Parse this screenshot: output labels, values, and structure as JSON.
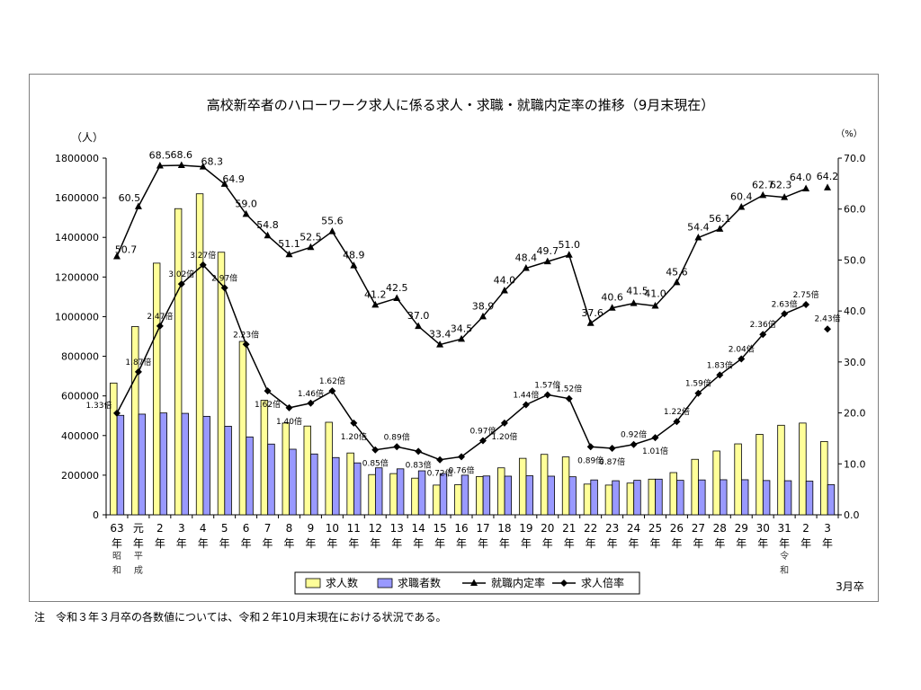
{
  "note": "注　令和３年３月卒の各数値については、令和２年10月末現在における状況である。",
  "colors": {
    "offers_fill": "#ffff99",
    "seekers_fill": "#9999ff",
    "bar_stroke": "#000000",
    "line": "#000000",
    "frame": "#7f7f7f"
  },
  "chart_data": {
    "type": "bar",
    "title": "高校新卒者のハローワーク求人に係る求人・求職・就職内定率の推移（9月末現在）",
    "y_left_unit": "（人）",
    "y_right_unit": "（%）",
    "ylim_left": [
      0,
      1800000
    ],
    "ylim_right": [
      0.0,
      70.0
    ],
    "y_left_ticks": [
      "0",
      "200000",
      "400000",
      "600000",
      "800000",
      "1000000",
      "1200000",
      "1400000",
      "1600000",
      "1800000"
    ],
    "y_right_ticks": [
      "0.0",
      "10.0",
      "20.0",
      "30.0",
      "40.0",
      "50.0",
      "60.0",
      "70.0"
    ],
    "categories": [
      "63年",
      "元年",
      "2年",
      "3年",
      "4年",
      "5年",
      "6年",
      "7年",
      "8年",
      "9年",
      "10年",
      "11年",
      "12年",
      "13年",
      "14年",
      "15年",
      "16年",
      "17年",
      "18年",
      "19年",
      "20年",
      "21年",
      "22年",
      "23年",
      "24年",
      "25年",
      "26年",
      "27年",
      "28年",
      "29年",
      "30年",
      "31年",
      "2年",
      "3年"
    ],
    "era_labels": [
      {
        "index": 0,
        "text": "昭和"
      },
      {
        "index": 1,
        "text": "平成"
      },
      {
        "index": 31,
        "text": "令和"
      }
    ],
    "x_footer": "3月卒",
    "grid": false,
    "legend_position": "bottom",
    "series": [
      {
        "name": "求人数",
        "type": "bar",
        "axis": "left",
        "values": [
          665000,
          950000,
          1270000,
          1545000,
          1620000,
          1325000,
          875000,
          578000,
          463000,
          448000,
          467000,
          312000,
          203000,
          208000,
          185000,
          150000,
          152000,
          193000,
          237000,
          285000,
          305000,
          292000,
          155000,
          150000,
          160000,
          180000,
          213000,
          280000,
          322000,
          358000,
          406000,
          452000,
          463000,
          370000
        ]
      },
      {
        "name": "求職者数",
        "type": "bar",
        "axis": "left",
        "values": [
          502000,
          508000,
          514000,
          512000,
          497000,
          447000,
          393000,
          357000,
          331000,
          307000,
          289000,
          262000,
          237000,
          232000,
          222000,
          208000,
          200000,
          196000,
          195000,
          197000,
          195000,
          192000,
          176000,
          172000,
          174000,
          180000,
          174000,
          176000,
          177000,
          177000,
          173000,
          172000,
          170000,
          152000
        ]
      },
      {
        "name": "就職内定率",
        "type": "line",
        "marker": "triangle",
        "axis": "right",
        "values": [
          50.7,
          60.5,
          68.5,
          68.6,
          68.3,
          64.9,
          59.0,
          54.8,
          51.1,
          52.5,
          55.6,
          48.9,
          41.2,
          42.5,
          37.0,
          33.4,
          34.5,
          38.9,
          44.0,
          48.4,
          49.7,
          51.0,
          37.6,
          40.6,
          41.5,
          41.0,
          45.6,
          54.4,
          56.1,
          60.4,
          62.7,
          62.3,
          64.0,
          64.2
        ],
        "labels": [
          "50.7",
          "60.5",
          "68.5",
          "68.6",
          "68.3",
          "64.9",
          "59.0",
          "54.8",
          "51.1",
          "52.5",
          "55.6",
          "48.9",
          "41.2",
          "42.5",
          "37.0",
          "33.4",
          "34.5",
          "38.9",
          "44.0",
          "48.4",
          "49.7",
          "51.0",
          "37.6",
          "40.6",
          "41.5",
          "41.0",
          "45.6",
          "54.4",
          "56.1",
          "60.4",
          "62.7",
          "62.3",
          "64.0",
          "64.2"
        ],
        "connect_last": false
      },
      {
        "name": "求人倍率",
        "type": "line",
        "marker": "diamond",
        "axis": "right",
        "scale": 15,
        "values": [
          1.33,
          1.87,
          2.47,
          3.02,
          3.27,
          2.97,
          2.23,
          1.62,
          1.4,
          1.46,
          1.62,
          1.2,
          0.85,
          0.89,
          0.83,
          0.72,
          0.76,
          0.97,
          1.2,
          1.44,
          1.57,
          1.52,
          0.89,
          0.87,
          0.92,
          1.01,
          1.22,
          1.59,
          1.83,
          2.04,
          2.36,
          2.63,
          2.75,
          2.43
        ],
        "labels": [
          "1.33倍",
          "1.87倍",
          "2.47倍",
          "3.02倍",
          "3.27倍",
          "2.97倍",
          "2.23倍",
          "1.62倍",
          "1.40倍",
          "1.46倍",
          "1.62倍",
          "1.20倍",
          "0.85倍",
          "0.89倍",
          "0.83倍",
          "0.72倍",
          "0.76倍",
          "0.97倍",
          "1.20倍",
          "1.44倍",
          "1.57倍",
          "1.52倍",
          "0.89倍",
          "0.87倍",
          "0.92倍",
          "1.01倍",
          "1.22倍",
          "1.59倍",
          "1.83倍",
          "2.04倍",
          "2.36倍",
          "2.63倍",
          "2.75倍",
          "2.43倍"
        ],
        "connect_last": false
      }
    ]
  }
}
